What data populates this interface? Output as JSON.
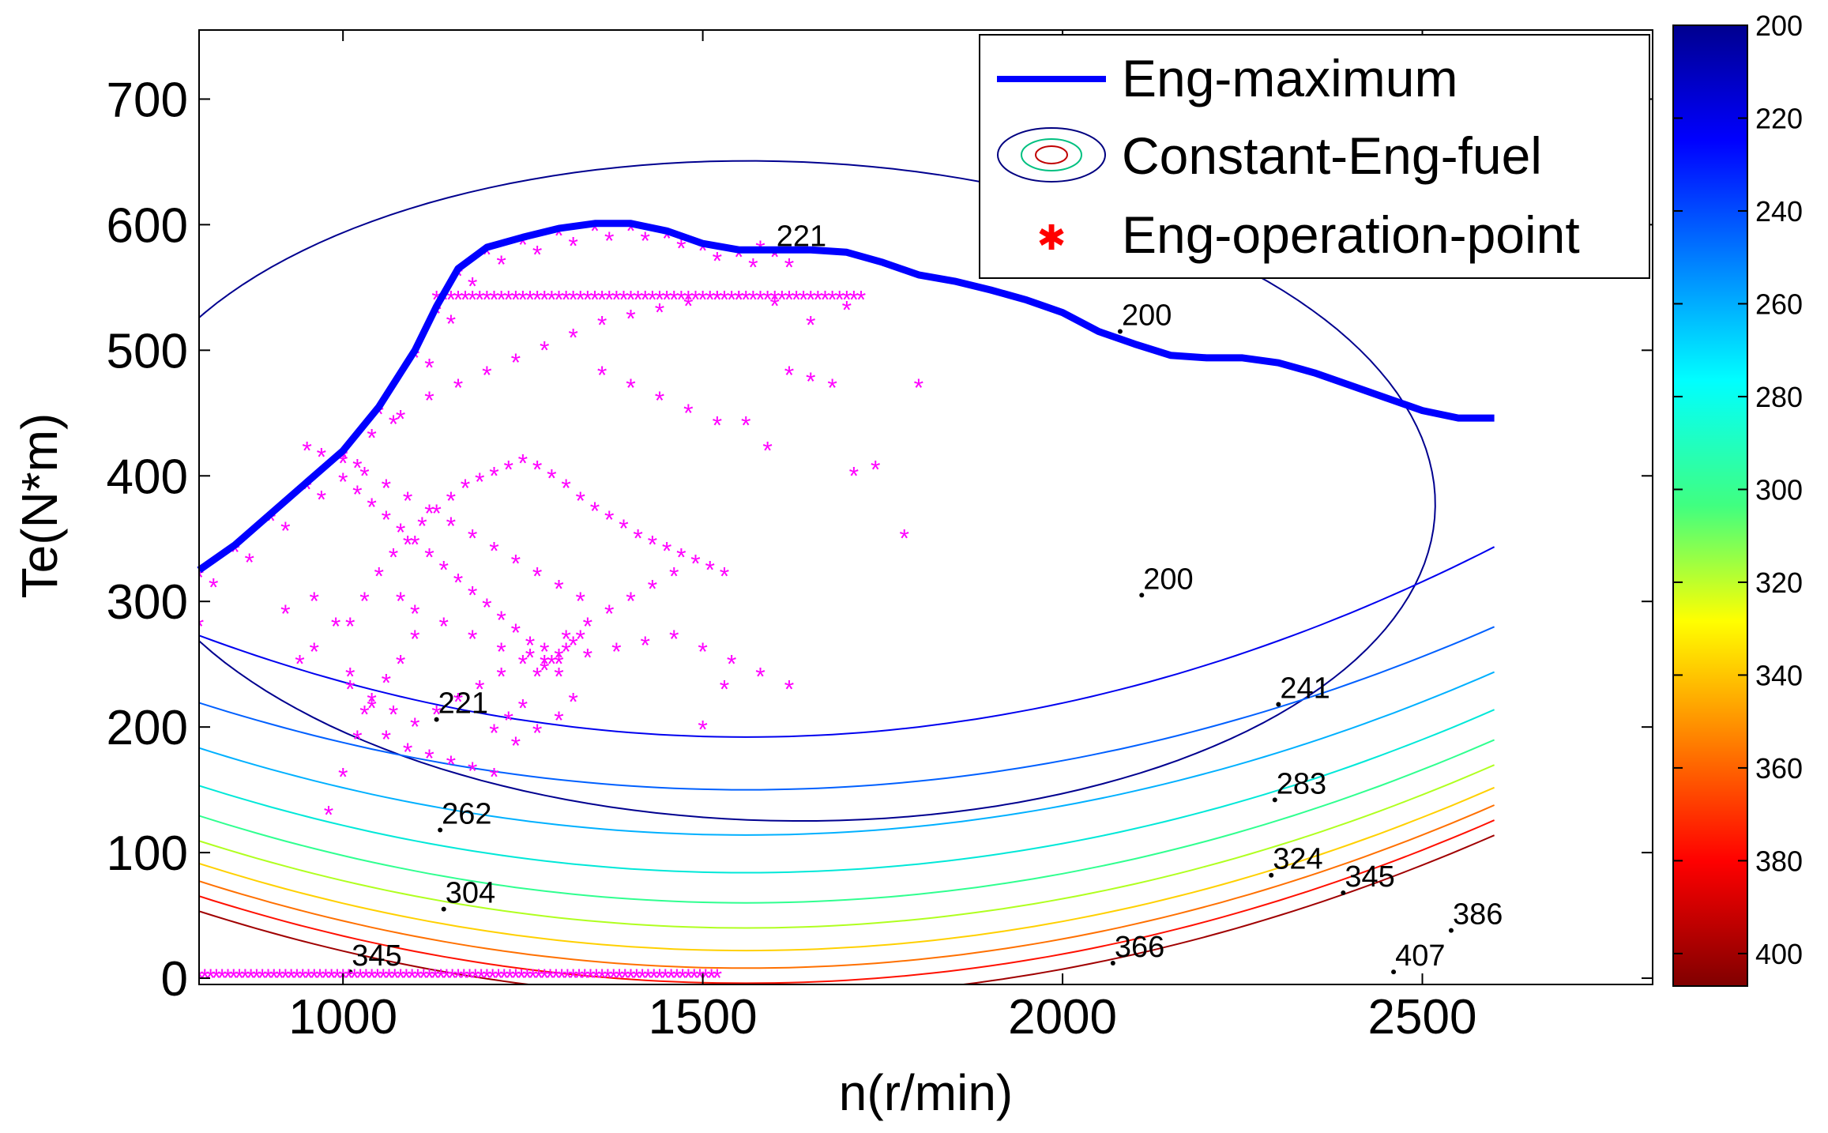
{
  "chart_data": {
    "type": "scatter",
    "title": "",
    "xlabel": "n(r/min)",
    "ylabel": "Te(N*m)",
    "xlim": [
      800,
      2820
    ],
    "ylim": [
      -5,
      755
    ],
    "xticks": [
      1000,
      1500,
      2000,
      2500
    ],
    "yticks": [
      0,
      100,
      200,
      300,
      400,
      500,
      600,
      700
    ],
    "xtick_labels": [
      "1000",
      "1500",
      "2000",
      "2500"
    ],
    "ytick_labels": [
      "0",
      "100",
      "200",
      "300",
      "400",
      "500",
      "600",
      "700"
    ],
    "legend": {
      "position": "top-right",
      "entries": [
        {
          "label": "Eng-maximum",
          "style": "thick-line",
          "color": "#0000ff"
        },
        {
          "label": "Constant-Eng-fuel",
          "style": "contour-icon",
          "color": "#000080"
        },
        {
          "label": "Eng-operation-point",
          "style": "star-marker",
          "color": "#ff0000"
        }
      ]
    },
    "max_torque_curve": {
      "name": "Eng-maximum",
      "color": "#0000ff",
      "x": [
        800,
        850,
        900,
        950,
        1000,
        1050,
        1100,
        1130,
        1160,
        1200,
        1250,
        1300,
        1350,
        1400,
        1450,
        1500,
        1550,
        1600,
        1650,
        1700,
        1750,
        1800,
        1850,
        1900,
        1950,
        2000,
        2050,
        2100,
        2150,
        2200,
        2250,
        2300,
        2350,
        2400,
        2450,
        2500,
        2550,
        2600
      ],
      "y": [
        325,
        345,
        370,
        395,
        420,
        455,
        500,
        535,
        565,
        582,
        590,
        597,
        601,
        601,
        595,
        585,
        580,
        580,
        580,
        578,
        570,
        560,
        555,
        548,
        540,
        530,
        515,
        505,
        496,
        494,
        494,
        490,
        482,
        472,
        462,
        452,
        446,
        446
      ]
    },
    "contours": [
      {
        "level": 200,
        "color": "#00008f",
        "kind": "closed"
      },
      {
        "level": 221,
        "color": "#0000ef",
        "kind": "open"
      },
      {
        "level": 241,
        "color": "#0060ff",
        "kind": "open"
      },
      {
        "level": 262,
        "color": "#00b0ff",
        "kind": "open"
      },
      {
        "level": 283,
        "color": "#00e8d8",
        "kind": "open"
      },
      {
        "level": 304,
        "color": "#30ff90",
        "kind": "open"
      },
      {
        "level": 324,
        "color": "#b0ff20",
        "kind": "open"
      },
      {
        "level": 345,
        "color": "#ffd000",
        "kind": "open"
      },
      {
        "level": 366,
        "color": "#ff7000",
        "kind": "open"
      },
      {
        "level": 386,
        "color": "#ff1000",
        "kind": "open"
      },
      {
        "level": 407,
        "color": "#a00000",
        "kind": "open"
      }
    ],
    "contour_labels": [
      {
        "text": "221",
        "x": 1600,
        "y": 578
      },
      {
        "text": "200",
        "x": 2080,
        "y": 515
      },
      {
        "text": "200",
        "x": 2110,
        "y": 305
      },
      {
        "text": "221",
        "x": 1130,
        "y": 206
      },
      {
        "text": "241",
        "x": 2300,
        "y": 218
      },
      {
        "text": "262",
        "x": 1135,
        "y": 118
      },
      {
        "text": "283",
        "x": 2295,
        "y": 142
      },
      {
        "text": "304",
        "x": 1140,
        "y": 55
      },
      {
        "text": "324",
        "x": 2290,
        "y": 82
      },
      {
        "text": "345",
        "x": 2390,
        "y": 68
      },
      {
        "text": "345",
        "x": 1010,
        "y": 5
      },
      {
        "text": "366",
        "x": 2070,
        "y": 12
      },
      {
        "text": "386",
        "x": 2540,
        "y": 38
      },
      {
        "text": "407",
        "x": 2460,
        "y": 5
      }
    ],
    "operation_points": {
      "name": "Eng-operation-point",
      "marker_color": "#ff00ff",
      "marker": "*",
      "x": [
        980,
        1000,
        1020,
        1040,
        1060,
        1080,
        1100,
        1010,
        1030,
        1050,
        1070,
        1090,
        1110,
        1130,
        1150,
        1170,
        1190,
        1210,
        1230,
        1250,
        1270,
        1290,
        1310,
        1330,
        1350,
        1370,
        1390,
        1410,
        1430,
        1450,
        1470,
        1490,
        1510,
        1530,
        1560,
        1590,
        1620,
        1650,
        1680,
        1710,
        1740,
        1780,
        1800,
        1700,
        1650,
        1600,
        1550,
        1520,
        1480,
        1440,
        1400,
        1360,
        1320,
        1280,
        1240,
        1200,
        1160,
        1120,
        1080,
        1040,
        1000,
        960,
        940,
        920,
        960,
        990,
        1010,
        1030,
        1060,
        1090,
        1120,
        1150,
        1180,
        1210,
        1240,
        1270,
        1300,
        1320,
        1300,
        1280,
        1260,
        1240,
        1220,
        1200,
        1180,
        1160,
        1140,
        1120,
        1100,
        1080,
        1060,
        1040,
        1020,
        1000,
        1080,
        1100,
        1140,
        1180,
        1220,
        1260,
        1300,
        1340,
        1380,
        1420,
        1460,
        1500,
        1540,
        1580,
        1620,
        1360,
        1400,
        1440,
        1480,
        1520,
        1330,
        1300,
        1270,
        1240,
        1210,
        1180,
        1150,
        1120,
        1090,
        1060,
        1030,
        1000,
        970,
        950,
        1010,
        1040,
        1070,
        1100,
        1130,
        1160,
        1190,
        1220,
        1250,
        1280,
        1310,
        1340,
        1370,
        1400,
        1430,
        1460,
        1270,
        1280,
        1290,
        1300,
        1310,
        1320,
        1330,
        1250,
        1230,
        1210,
        800,
        1530,
        1580,
        1500
      ],
      "y": [
        130,
        160,
        190,
        215,
        235,
        250,
        270,
        280,
        300,
        320,
        335,
        345,
        360,
        370,
        380,
        390,
        395,
        400,
        405,
        410,
        405,
        398,
        390,
        380,
        372,
        365,
        358,
        350,
        345,
        340,
        335,
        330,
        325,
        320,
        440,
        420,
        480,
        475,
        470,
        400,
        405,
        350,
        470,
        532,
        520,
        535,
        540,
        540,
        535,
        530,
        525,
        520,
        510,
        500,
        490,
        480,
        470,
        460,
        445,
        430,
        415,
        260,
        250,
        290,
        300,
        280,
        240,
        210,
        190,
        180,
        175,
        170,
        165,
        160,
        185,
        195,
        205,
        220,
        240,
        250,
        265,
        275,
        285,
        295,
        305,
        315,
        325,
        335,
        345,
        355,
        365,
        375,
        385,
        395,
        300,
        290,
        280,
        270,
        260,
        255,
        250,
        255,
        260,
        265,
        270,
        260,
        250,
        240,
        230,
        480,
        470,
        460,
        450,
        440,
        300,
        310,
        320,
        330,
        340,
        350,
        360,
        370,
        380,
        390,
        400,
        410,
        415,
        420,
        230,
        220,
        210,
        200,
        210,
        220,
        230,
        240,
        250,
        260,
        270,
        280,
        290,
        300,
        310,
        320,
        240,
        245,
        250,
        255,
        260,
        265,
        270,
        215,
        205,
        195,
        280,
        230,
        580,
        198
      ]
    },
    "colorbar": {
      "min": 200,
      "max": 407,
      "direction": "reversed",
      "tick_values": [
        200,
        220,
        240,
        260,
        280,
        300,
        320,
        340,
        360,
        380,
        400
      ],
      "tick_labels": [
        "200",
        "220",
        "240",
        "260",
        "280",
        "300",
        "320",
        "340",
        "360",
        "380",
        "400"
      ]
    }
  }
}
